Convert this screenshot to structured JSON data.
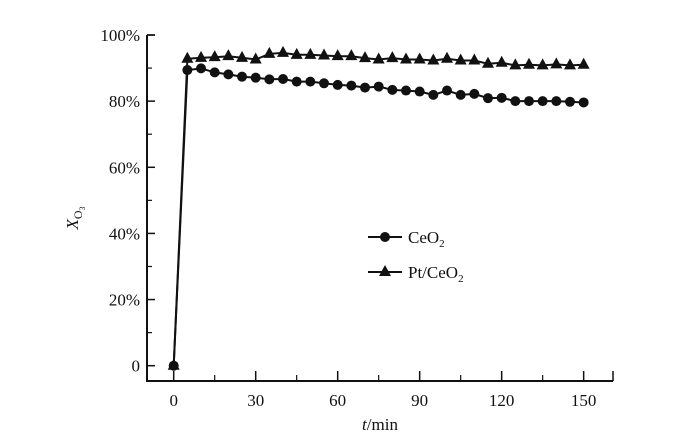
{
  "chart_data": {
    "type": "line",
    "title": "",
    "xlabel_italic": "t",
    "xlabel_rest": "/min",
    "ylabel_main": "X",
    "ylabel_sub": "O",
    "ylabel_subsub": "3",
    "xlim": [
      -10,
      160
    ],
    "ylim": [
      0,
      100
    ],
    "x_ticks": [
      0,
      30,
      60,
      90,
      120,
      150
    ],
    "x_tick_labels": [
      "0",
      "30",
      "60",
      "90",
      "120",
      "150"
    ],
    "y_ticks": [
      0,
      20,
      40,
      60,
      80,
      100
    ],
    "y_tick_labels": [
      "0",
      "20%",
      "40%",
      "60%",
      "80%",
      "100%"
    ],
    "grid": false,
    "legend_position": "center-right",
    "x": [
      0,
      5,
      10,
      15,
      20,
      25,
      30,
      35,
      40,
      45,
      50,
      55,
      60,
      65,
      70,
      75,
      80,
      85,
      90,
      95,
      100,
      105,
      110,
      115,
      120,
      125,
      130,
      135,
      140,
      145,
      150
    ],
    "series": [
      {
        "name": "CeO",
        "name_sub": "2",
        "marker": "circle",
        "color": "#111111",
        "values": [
          0,
          89.4,
          89.9,
          88.7,
          88.1,
          87.4,
          87.1,
          86.6,
          86.7,
          85.9,
          85.9,
          85.4,
          84.9,
          84.7,
          84.1,
          84.4,
          83.4,
          83.2,
          82.9,
          81.9,
          83.2,
          81.9,
          82.2,
          80.9,
          81.0,
          80.0,
          80.0,
          80.0,
          80.0,
          79.8,
          79.6
        ]
      },
      {
        "name": "Pt/CeO",
        "name_sub": "2",
        "marker": "triangle",
        "color": "#111111",
        "values": [
          0,
          92.8,
          93.1,
          93.3,
          93.6,
          93.1,
          92.6,
          94.3,
          94.6,
          94.0,
          94.0,
          93.8,
          93.6,
          93.6,
          93.0,
          92.6,
          93.0,
          92.6,
          92.6,
          92.3,
          92.8,
          92.3,
          92.3,
          91.3,
          91.6,
          90.8,
          91.0,
          90.8,
          91.1,
          90.8,
          91.0
        ]
      }
    ]
  }
}
